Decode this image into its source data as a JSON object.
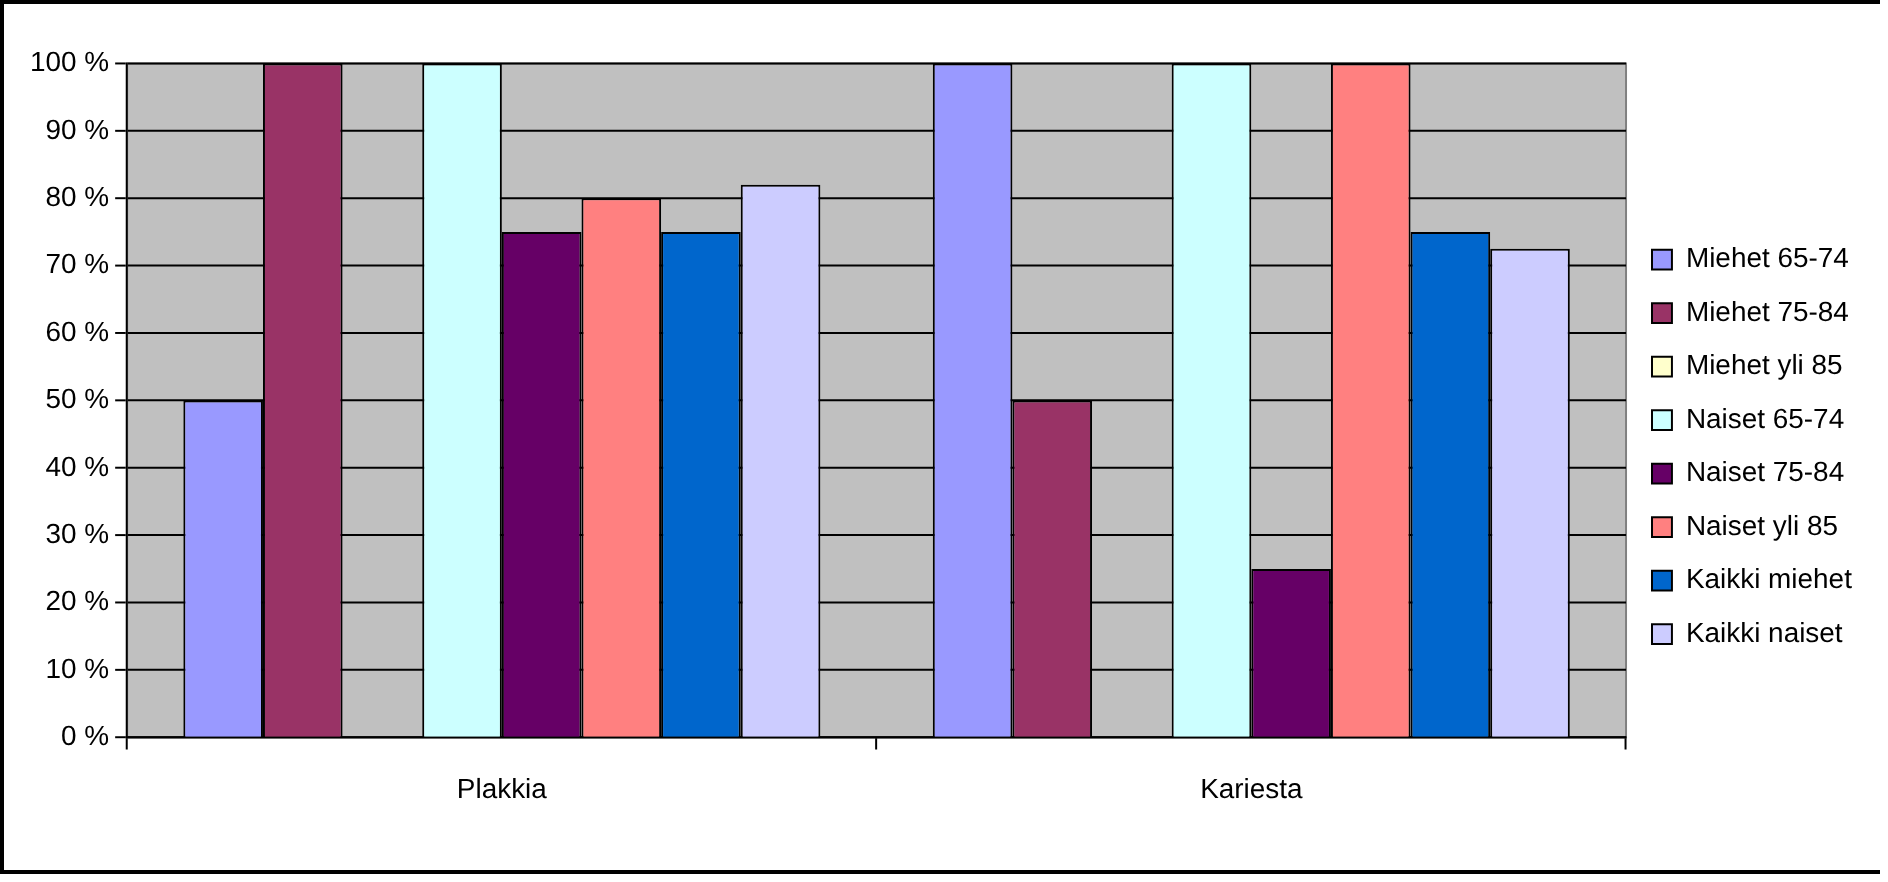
{
  "chart_data": {
    "type": "bar",
    "categories": [
      "Plakkia",
      "Kariesta"
    ],
    "series": [
      {
        "name": "Miehet 65-74",
        "color": "#9999ff",
        "values": [
          50,
          100
        ]
      },
      {
        "name": "Miehet 75-84",
        "color": "#993366",
        "values": [
          100,
          50
        ]
      },
      {
        "name": "Miehet yli 85",
        "color": "#ffffcc",
        "values": [
          0,
          0
        ]
      },
      {
        "name": "Naiset 65-74",
        "color": "#ccffff",
        "values": [
          100,
          100
        ]
      },
      {
        "name": "Naiset 75-84",
        "color": "#660066",
        "values": [
          75,
          25
        ]
      },
      {
        "name": "Naiset yli 85",
        "color": "#ff8080",
        "values": [
          80,
          100
        ]
      },
      {
        "name": "Kaikki miehet",
        "color": "#0066cc",
        "values": [
          75,
          75
        ]
      },
      {
        "name": "Kaikki naiset",
        "color": "#ccccff",
        "values": [
          82,
          72.5
        ]
      }
    ],
    "ylim": [
      0,
      100
    ],
    "yticks": [
      {
        "value": 0,
        "label": "0 %"
      },
      {
        "value": 10,
        "label": "10 %"
      },
      {
        "value": 20,
        "label": "20 %"
      },
      {
        "value": 30,
        "label": "30 %"
      },
      {
        "value": 40,
        "label": "40 %"
      },
      {
        "value": 50,
        "label": "50 %"
      },
      {
        "value": 60,
        "label": "60 %"
      },
      {
        "value": 70,
        "label": "70 %"
      },
      {
        "value": 80,
        "label": "80 %"
      },
      {
        "value": 90,
        "label": "90 %"
      },
      {
        "value": 100,
        "label": "100 %"
      }
    ],
    "grid": "y",
    "legend": "right"
  }
}
